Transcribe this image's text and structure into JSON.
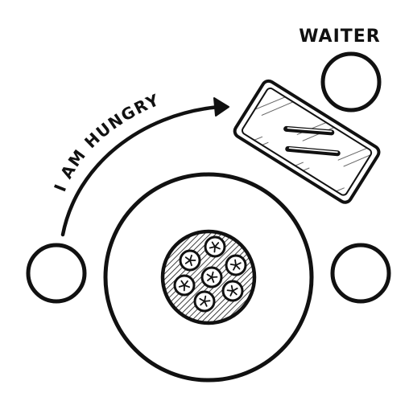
{
  "labels": {
    "waiter": "WAITER",
    "speech": "I AM HUNGRY"
  },
  "icons": {
    "waiter_seat": "circle",
    "left_seat": "circle",
    "right_seat": "circle",
    "main_table": "circle",
    "pizza": "pizza-icon",
    "serving_cart": "cart-icon",
    "arrow": "curved-arrow-icon"
  },
  "pizza": {
    "slices_visible": 7
  },
  "colors": {
    "ink": "#111111",
    "background": "#ffffff"
  }
}
